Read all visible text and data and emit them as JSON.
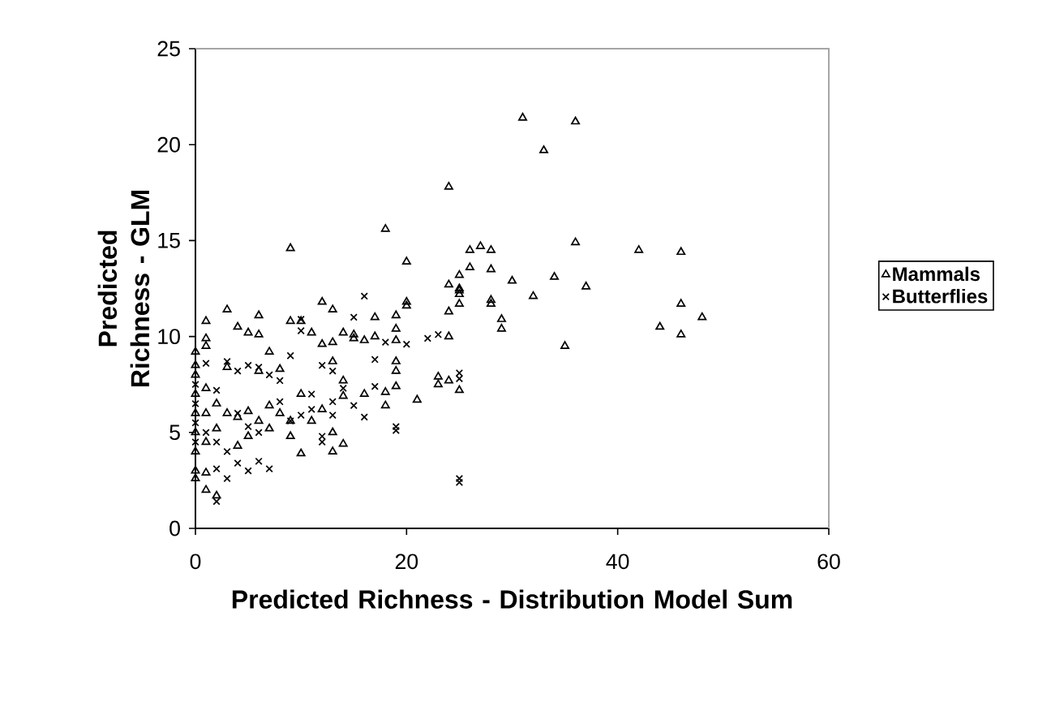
{
  "chart_data": {
    "type": "scatter",
    "xlabel": "Predicted Richness - Distribution Model Sum",
    "ylabel": "Predicted Richness - GLM",
    "xlim": [
      0,
      60
    ],
    "xticks": [
      0,
      20,
      40,
      60
    ],
    "ylim": [
      0,
      25
    ],
    "yticks": [
      0,
      5,
      10,
      15,
      20,
      25
    ],
    "grid": false,
    "legend": "right",
    "series": [
      {
        "name": "Mammals",
        "color": "#000000",
        "marker": "triangle",
        "x": [
          31,
          36,
          33,
          24,
          18,
          9,
          20,
          26,
          27,
          28,
          36,
          42,
          46,
          24,
          25,
          26,
          28,
          30,
          32,
          34,
          37,
          24,
          25,
          25,
          25,
          28,
          28,
          29,
          29,
          44,
          46,
          46,
          48,
          35,
          24,
          20,
          20,
          23,
          24,
          23,
          25,
          25,
          21,
          19,
          19,
          19,
          19,
          19,
          19,
          18,
          18,
          17,
          17,
          16,
          15,
          15,
          14,
          14,
          14,
          14,
          13,
          13,
          13,
          13,
          13,
          12,
          12,
          11,
          10,
          10,
          10,
          9,
          9,
          8,
          7,
          7,
          6,
          6,
          5,
          4,
          3,
          1,
          1,
          1,
          2,
          1,
          1,
          0,
          0,
          0,
          0,
          0,
          0,
          0,
          0,
          0,
          1,
          1,
          1,
          2,
          2,
          3,
          3,
          4,
          4,
          5,
          5,
          6,
          6,
          7,
          8,
          9,
          11,
          12,
          16
        ],
        "values": [
          21.4,
          21.2,
          19.7,
          17.8,
          15.6,
          14.6,
          13.9,
          14.5,
          14.7,
          14.5,
          14.9,
          14.5,
          14.4,
          12.7,
          13.2,
          13.6,
          13.5,
          12.9,
          12.1,
          13.1,
          12.6,
          11.3,
          12.4,
          12.2,
          11.7,
          11.9,
          11.7,
          10.9,
          10.4,
          10.5,
          11.7,
          10.1,
          11.0,
          9.5,
          10.0,
          11.6,
          11.8,
          7.9,
          7.7,
          7.5,
          7.2,
          12.5,
          6.7,
          11.1,
          10.4,
          9.8,
          8.7,
          8.2,
          7.4,
          7.1,
          6.4,
          11.0,
          10.0,
          9.8,
          10.1,
          9.9,
          10.2,
          7.7,
          6.9,
          4.4,
          11.4,
          9.7,
          8.7,
          4.0,
          5.0,
          11.8,
          9.6,
          10.2,
          10.8,
          7.0,
          3.9,
          10.8,
          5.6,
          6.0,
          9.2,
          5.2,
          11.1,
          10.1,
          10.2,
          10.5,
          11.4,
          10.8,
          9.9,
          9.5,
          1.7,
          2.0,
          2.9,
          9.2,
          8.5,
          8.0,
          7.0,
          6.0,
          5.0,
          4.0,
          3.0,
          2.6,
          7.3,
          6.0,
          4.5,
          6.5,
          5.2,
          8.4,
          6.0,
          4.3,
          5.8,
          6.1,
          4.8,
          5.6,
          8.2,
          6.4,
          8.3,
          4.8,
          5.6,
          6.2,
          7.0
        ]
      },
      {
        "name": "Butterflies",
        "color": "#000000",
        "marker": "cross",
        "x": [
          16,
          22,
          23,
          20,
          25,
          25,
          25,
          25,
          19,
          19,
          18,
          17,
          17,
          16,
          15,
          15,
          14,
          13,
          13,
          12,
          12,
          12,
          11,
          10,
          10,
          10,
          9,
          8,
          7,
          6,
          6,
          5,
          4,
          3,
          2,
          2,
          1,
          0,
          0,
          0,
          0,
          1,
          2,
          3,
          3,
          4,
          5,
          6,
          7,
          8,
          9,
          11,
          13,
          2,
          4,
          5
        ],
        "values": [
          12.1,
          9.9,
          10.1,
          9.6,
          8.1,
          7.8,
          2.6,
          2.4,
          5.3,
          5.1,
          9.7,
          8.8,
          7.4,
          5.8,
          11.0,
          6.4,
          7.3,
          6.6,
          5.9,
          4.8,
          4.5,
          8.5,
          6.2,
          10.9,
          10.3,
          5.9,
          9.0,
          7.7,
          3.1,
          5.0,
          3.5,
          3.0,
          3.4,
          2.6,
          1.4,
          3.1,
          8.6,
          7.5,
          6.5,
          5.5,
          4.5,
          5.0,
          7.2,
          8.7,
          4.0,
          8.2,
          8.5,
          8.4,
          8.0,
          6.6,
          5.6,
          7.0,
          8.2,
          4.5,
          6.0,
          5.3
        ]
      }
    ]
  }
}
